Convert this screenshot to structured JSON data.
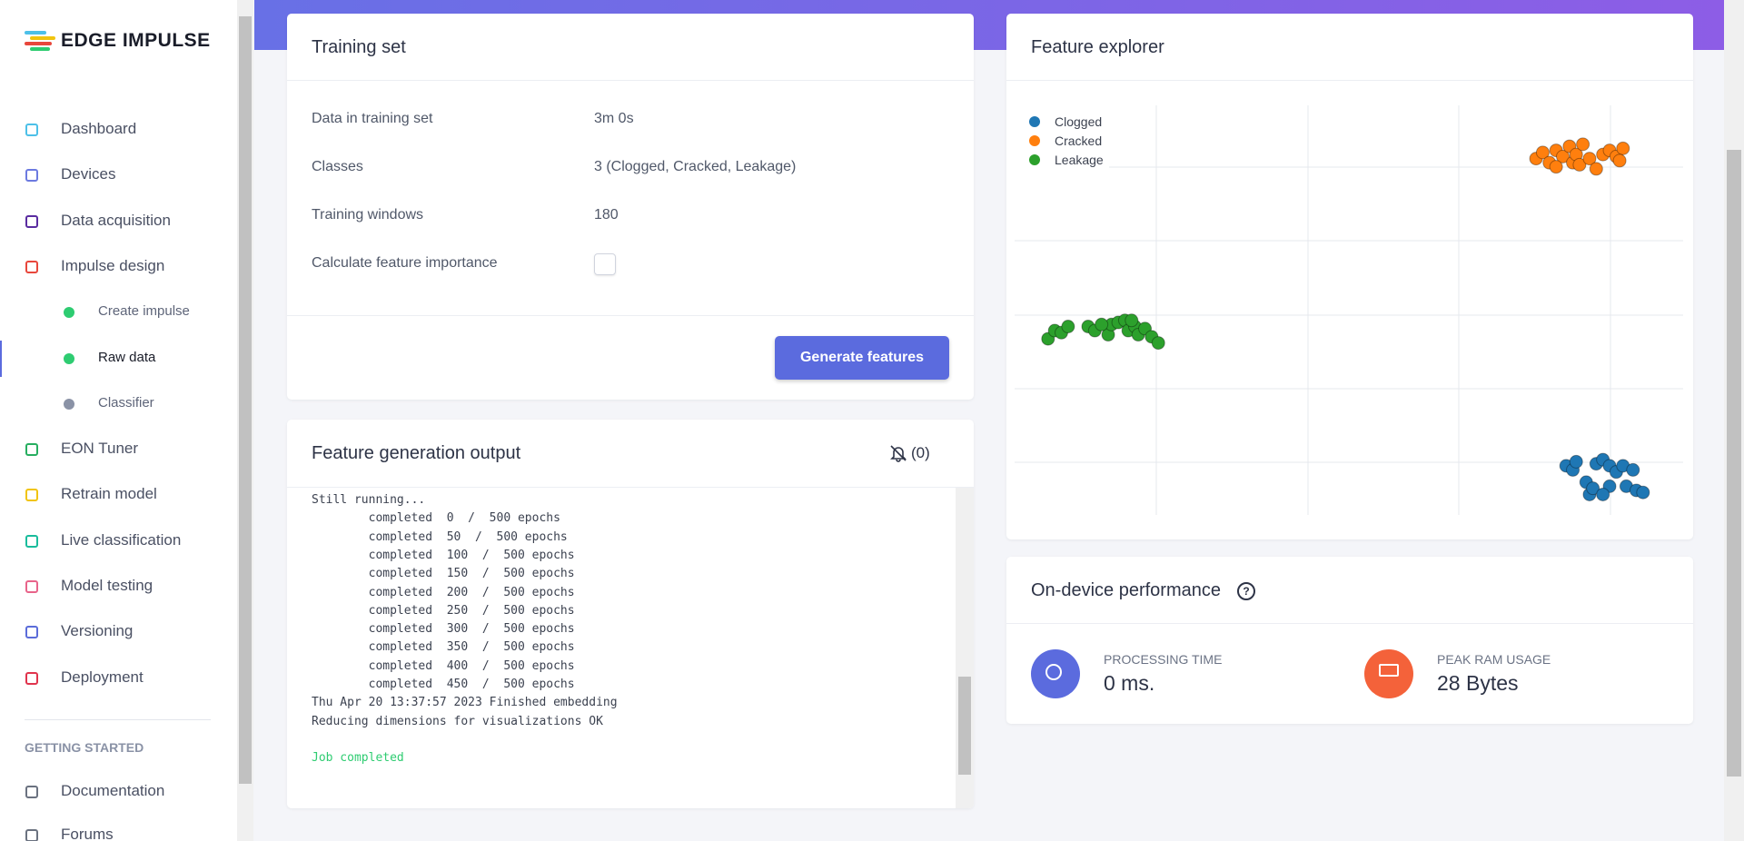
{
  "sidebar": {
    "brand": "EDGE IMPULSE",
    "nav": [
      "Dashboard",
      "Devices",
      "Data acquisition",
      "Impulse design"
    ],
    "sub": [
      "Create impulse",
      "Raw data",
      "Classifier"
    ],
    "nav2": [
      "EON Tuner",
      "Retrain model",
      "Live classification",
      "Model testing",
      "Versioning",
      "Deployment"
    ],
    "section": "GETTING STARTED",
    "nav3": [
      "Documentation",
      "Forums"
    ]
  },
  "training_set": {
    "title": "Training set",
    "rows": [
      [
        "Data in training set",
        "3m 0s"
      ],
      [
        "Classes",
        "3 (Clogged, Cracked, Leakage)"
      ],
      [
        "Training windows",
        "180"
      ],
      [
        "Calculate feature importance"
      ]
    ],
    "button": "Generate features"
  },
  "feature_output": {
    "title": "Feature generation output",
    "notifications": "(0)",
    "log": [
      "Still running...",
      "        completed  0  /  500 epochs",
      "        completed  50  /  500 epochs",
      "        completed  100  /  500 epochs",
      "        completed  150  /  500 epochs",
      "        completed  200  /  500 epochs",
      "        completed  250  /  500 epochs",
      "        completed  300  /  500 epochs",
      "        completed  350  /  500 epochs",
      "        completed  400  /  500 epochs",
      "        completed  450  /  500 epochs",
      "Thu Apr 20 13:37:57 2023 Finished embedding",
      "Reducing dimensions for visualizations OK"
    ],
    "status": "Job completed"
  },
  "feature_explorer": {
    "title": "Feature explorer",
    "chart_data": {
      "type": "scatter",
      "xlim": [
        0,
        100
      ],
      "ylim": [
        0,
        100
      ],
      "series": [
        {
          "name": "Clogged",
          "color": "#1f77b4",
          "x": [
            82.5,
            83.5,
            84,
            85.5,
            86,
            87,
            88,
            89,
            89,
            90,
            91,
            91.5,
            92.5,
            93,
            94,
            86.5,
            88
          ],
          "y": [
            12,
            11,
            13,
            8,
            5,
            12.5,
            13.5,
            12,
            7,
            10.5,
            12,
            7,
            11,
            6,
            5.5,
            6.5,
            5
          ]
        },
        {
          "name": "Cracked",
          "color": "#ff7f0e",
          "x": [
            78,
            79,
            80,
            81,
            82,
            83,
            83.5,
            84,
            85,
            84.5,
            86,
            87,
            88,
            89,
            90,
            91,
            90.5,
            81
          ],
          "y": [
            87,
            88.5,
            86,
            89,
            87.5,
            90,
            86,
            88,
            90.5,
            85.5,
            87,
            84.5,
            88,
            89,
            87.5,
            89.5,
            86.5,
            85
          ]
        },
        {
          "name": "Leakage",
          "color": "#2ca02c",
          "x": [
            5,
            6,
            7,
            8,
            11,
            12,
            14,
            14.5,
            15.5,
            16.5,
            17,
            18,
            18.5,
            19.5,
            20.5,
            21.5,
            13,
            17.5
          ],
          "y": [
            43,
            45,
            44.5,
            46,
            46,
            45,
            44,
            46.5,
            47,
            47.5,
            45,
            46,
            44,
            45.5,
            43.5,
            42,
            46.5,
            47.5
          ]
        }
      ]
    }
  },
  "performance": {
    "title": "On-device performance",
    "metrics": [
      {
        "label": "PROCESSING TIME",
        "value": "0 ms."
      },
      {
        "label": "PEAK RAM USAGE",
        "value": "28 Bytes"
      }
    ]
  }
}
